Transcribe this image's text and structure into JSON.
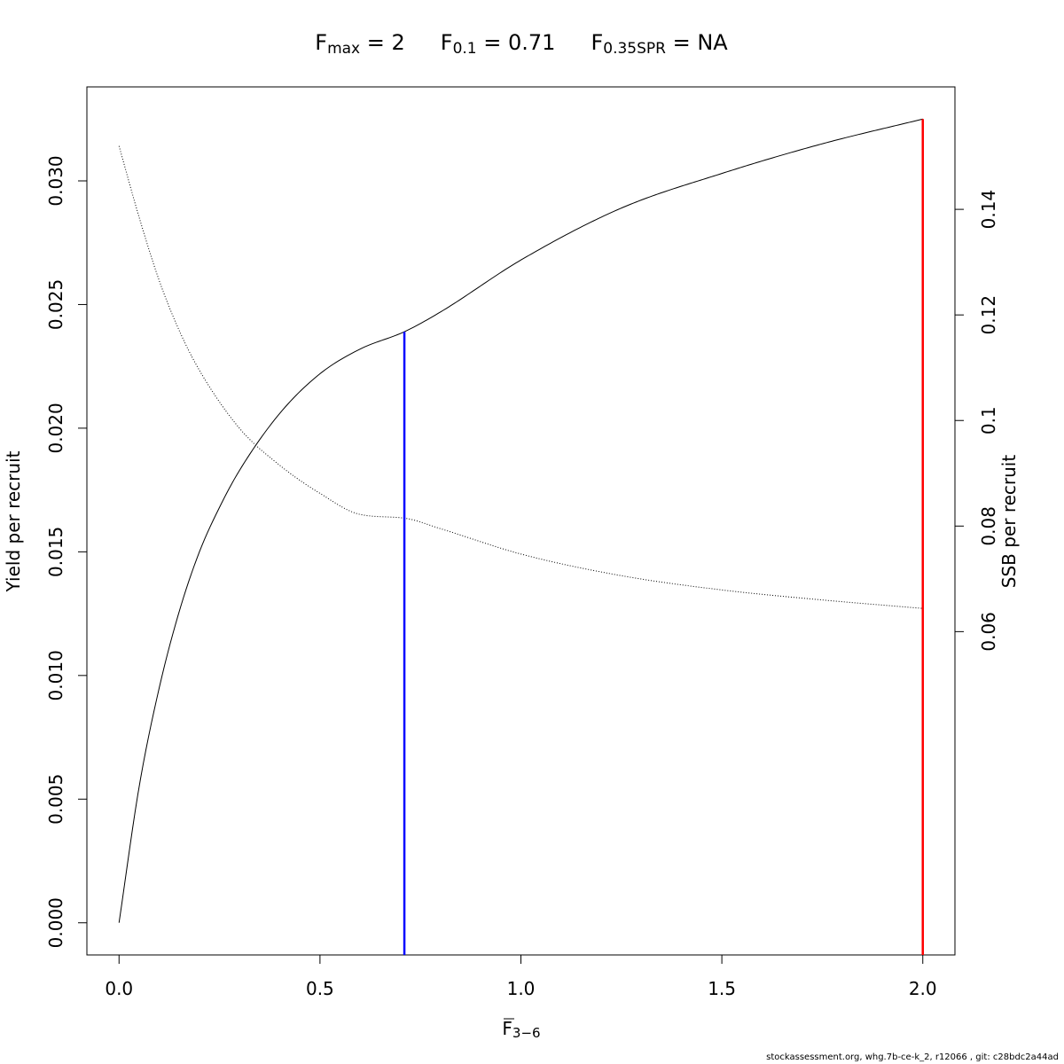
{
  "title": {
    "fmax_sym": "F",
    "fmax_sub": "max",
    "fmax_eq": " = 2",
    "f01_sym": "F",
    "f01_sub": "0.1",
    "f01_eq": " = 0.71",
    "fspr_sym": "F",
    "fspr_sub": "0.35SPR",
    "fspr_eq": " = NA"
  },
  "footer": "stockassessment.org, whg.7b-ce-k_2, r12066 , git: c28bdc2a44ad",
  "chart_data": {
    "type": "line",
    "xlabel": {
      "sym": "F",
      "sub": "3−6",
      "overbar": true
    },
    "ylabel": "Yield per recruit",
    "y2label": "SSB per recruit",
    "xlim": [
      -0.08,
      2.08
    ],
    "ylim": [
      -0.0013,
      0.0338
    ],
    "y2lim": [
      -0.00125,
      0.1632
    ],
    "x_ticks": [
      "0.0",
      "0.5",
      "1.0",
      "1.5",
      "2.0"
    ],
    "y_ticks": [
      "0.000",
      "0.005",
      "0.010",
      "0.015",
      "0.020",
      "0.025",
      "0.030"
    ],
    "y2_ticks": [
      "0.06",
      "0.08",
      "0.1",
      "0.12",
      "0.14"
    ],
    "grid": false,
    "series": [
      {
        "axis": "left",
        "style": "solid",
        "color": "#000000",
        "x": [
          0,
          0.05,
          0.1,
          0.15,
          0.2,
          0.25,
          0.3,
          0.4,
          0.5,
          0.6,
          0.71,
          0.8,
          1.0,
          1.25,
          1.5,
          1.75,
          2.0
        ],
        "y": [
          0,
          0.0055,
          0.0095,
          0.0126,
          0.015,
          0.0168,
          0.0183,
          0.0206,
          0.0222,
          0.0232,
          0.0239,
          0.0247,
          0.0268,
          0.0289,
          0.0303,
          0.0315,
          0.0325
        ]
      },
      {
        "axis": "right",
        "style": "dotted",
        "color": "#000000",
        "x": [
          0,
          0.05,
          0.1,
          0.15,
          0.2,
          0.3,
          0.4,
          0.5,
          0.6,
          0.71,
          0.8,
          1.0,
          1.25,
          1.5,
          1.75,
          2.0
        ],
        "y": [
          0.152,
          0.1385,
          0.1265,
          0.117,
          0.1095,
          0.0985,
          0.0915,
          0.0862,
          0.0822,
          0.0815,
          0.0795,
          0.0747,
          0.0706,
          0.0679,
          0.066,
          0.0644
        ]
      }
    ],
    "reference_lines": [
      {
        "x": 0.71,
        "y_top": 0.0239,
        "color": "#0000ff"
      },
      {
        "x": 2.0,
        "y_top": 0.0325,
        "color": "#ff0000"
      }
    ]
  }
}
